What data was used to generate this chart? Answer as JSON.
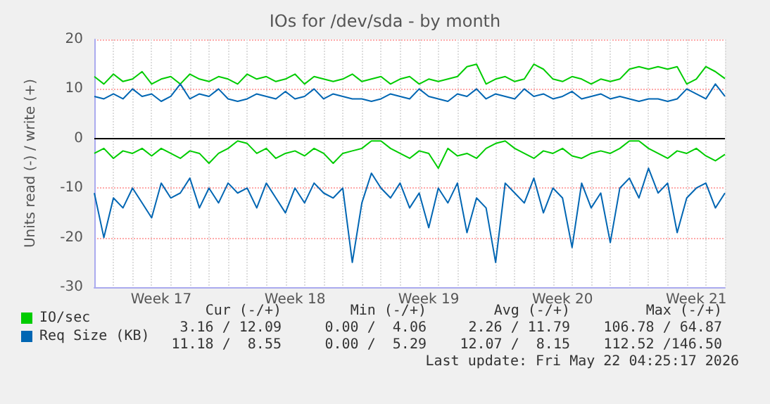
{
  "chart_data": {
    "type": "line",
    "title": "IOs for /dev/sda - by month",
    "ylabel": "Units read (-) / write (+)",
    "categories": [
      null,
      null,
      null,
      null,
      null,
      null,
      null,
      "Week 17",
      null,
      null,
      null,
      null,
      null,
      null,
      null,
      null,
      null,
      null,
      null,
      null,
      null,
      "Week 18",
      null,
      null,
      null,
      null,
      null,
      null,
      null,
      null,
      null,
      null,
      null,
      null,
      null,
      "Week 19",
      null,
      null,
      null,
      null,
      null,
      null,
      null,
      null,
      null,
      null,
      null,
      null,
      null,
      "Week 20",
      null,
      null,
      null,
      null,
      null,
      null,
      null,
      null,
      null,
      null,
      null,
      null,
      null,
      "Week 21",
      null,
      null,
      null
    ],
    "series": [
      {
        "name": "IO/sec",
        "color": "#00cc00",
        "values": [
          12.5,
          11,
          13,
          11.5,
          12,
          13.5,
          11,
          12,
          12.5,
          11,
          13,
          12,
          11.5,
          12.5,
          12,
          11,
          13,
          12,
          12.5,
          11.5,
          12,
          13,
          11,
          12.5,
          12,
          11.5,
          12,
          13,
          11.5,
          12,
          12.5,
          11,
          12,
          12.5,
          11,
          12,
          11.5,
          12,
          12.5,
          14.5,
          15,
          11,
          12,
          12.5,
          11.5,
          12,
          15,
          14,
          12,
          11.5,
          12.5,
          12,
          11,
          12,
          11.5,
          12,
          14,
          14.5,
          14,
          14.5,
          14,
          14.5,
          11,
          12,
          14.5,
          13.5,
          12.1
        ]
      },
      {
        "color": "#00cc00",
        "values": [
          -3,
          -2,
          -4,
          -2.5,
          -3,
          -2,
          -3.5,
          -2,
          -3,
          -4,
          -2.5,
          -3,
          -5,
          -3,
          -2,
          -0.5,
          -1,
          -3,
          -2,
          -4,
          -3,
          -2.5,
          -3.5,
          -2,
          -3,
          -5,
          -3,
          -2.5,
          -2,
          -0.5,
          -0.5,
          -2,
          -3,
          -4,
          -2.5,
          -3,
          -6,
          -2,
          -3.5,
          -3,
          -4,
          -2,
          -1,
          -0.5,
          -2,
          -3,
          -4,
          -2.5,
          -3,
          -2,
          -3.5,
          -4,
          -3,
          -2.5,
          -3,
          -2,
          -0.5,
          -0.5,
          -2,
          -3,
          -4,
          -2.5,
          -3,
          -2,
          -3.5,
          -4.5,
          -3.2
        ]
      },
      {
        "name": "Req Size (KB)",
        "color": "#0066b3",
        "values": [
          8.5,
          8,
          9,
          8,
          10,
          8.5,
          9,
          7.5,
          8.5,
          11,
          8,
          9,
          8.5,
          10,
          8,
          7.5,
          8,
          9,
          8.5,
          8,
          9.5,
          8,
          8.5,
          10,
          8,
          9,
          8.5,
          8,
          8,
          7.5,
          8,
          9,
          8.5,
          8,
          10,
          8.5,
          8,
          7.5,
          9,
          8.5,
          10,
          8,
          9,
          8.5,
          8,
          10,
          8.5,
          9,
          8,
          8.5,
          9.5,
          8,
          8.5,
          9,
          8,
          8.5,
          8,
          7.5,
          8,
          8,
          7.5,
          8,
          10,
          9,
          8,
          11,
          8.5
        ]
      },
      {
        "color": "#0066b3",
        "values": [
          -11,
          -20,
          -12,
          -14,
          -10,
          -13,
          -16,
          -9,
          -12,
          -11,
          -8,
          -14,
          -10,
          -13,
          -9,
          -11,
          -10,
          -14,
          -9,
          -12,
          -15,
          -10,
          -13,
          -9,
          -11,
          -12,
          -10,
          -25,
          -13,
          -7,
          -10,
          -12,
          -9,
          -14,
          -11,
          -18,
          -10,
          -13,
          -9,
          -19,
          -12,
          -14,
          -25,
          -9,
          -11,
          -13,
          -8,
          -15,
          -10,
          -12,
          -22,
          -9,
          -14,
          -11,
          -21,
          -10,
          -8,
          -12,
          -6,
          -11,
          -9,
          -19,
          -12,
          -10,
          -9,
          -14,
          -11
        ]
      }
    ],
    "ylim": [
      -30,
      20
    ],
    "yticks": [
      -30,
      -20,
      -10,
      0,
      10,
      20
    ],
    "grid": true,
    "legend": "bottom left",
    "marker": "none",
    "line_style": "solid",
    "ref_lines": [
      {
        "axis": "y",
        "value": 0,
        "color": "#000000",
        "line_style": "solid"
      }
    ],
    "annotations": [
      "Cur (-/+)",
      "Min (-/+)",
      "Avg (-/+)",
      "Max (-/+)",
      "3.16 / 12.09",
      "0.00 /  4.06",
      "2.26 / 11.79",
      "106.78 / 64.87",
      "11.18 /  8.55",
      "0.00 /  5.29",
      "12.07 /  8.15",
      "112.52 /146.50",
      "Last update: Fri May 22 04:25:17 2026"
    ]
  }
}
